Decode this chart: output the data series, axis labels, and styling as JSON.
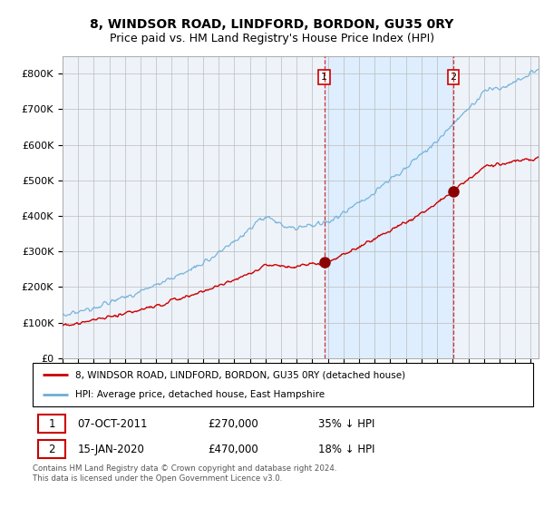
{
  "title": "8, WINDSOR ROAD, LINDFORD, BORDON, GU35 0RY",
  "subtitle": "Price paid vs. HM Land Registry's House Price Index (HPI)",
  "footer": "Contains HM Land Registry data © Crown copyright and database right 2024.\nThis data is licensed under the Open Government Licence v3.0.",
  "legend_line1": "8, WINDSOR ROAD, LINDFORD, BORDON, GU35 0RY (detached house)",
  "legend_line2": "HPI: Average price, detached house, East Hampshire",
  "sale1_date": "07-OCT-2011",
  "sale1_price": "£270,000",
  "sale1_note": "35% ↓ HPI",
  "sale2_date": "15-JAN-2020",
  "sale2_price": "£470,000",
  "sale2_note": "18% ↓ HPI",
  "hpi_color": "#6baed6",
  "hpi_fill_color": "#ddeeff",
  "price_color": "#cc0000",
  "vline_color": "#cc0000",
  "background_color": "#eef3fa",
  "ylim": [
    0,
    850000
  ],
  "yticks": [
    0,
    100000,
    200000,
    300000,
    400000,
    500000,
    600000,
    700000,
    800000
  ],
  "ytick_labels": [
    "£0",
    "£100K",
    "£200K",
    "£300K",
    "£400K",
    "£500K",
    "£600K",
    "£700K",
    "£800K"
  ],
  "sale1_x": 2011.77,
  "sale1_y": 270000,
  "sale2_x": 2020.04,
  "sale2_y": 470000,
  "xmin": 1995,
  "xmax": 2025.5
}
